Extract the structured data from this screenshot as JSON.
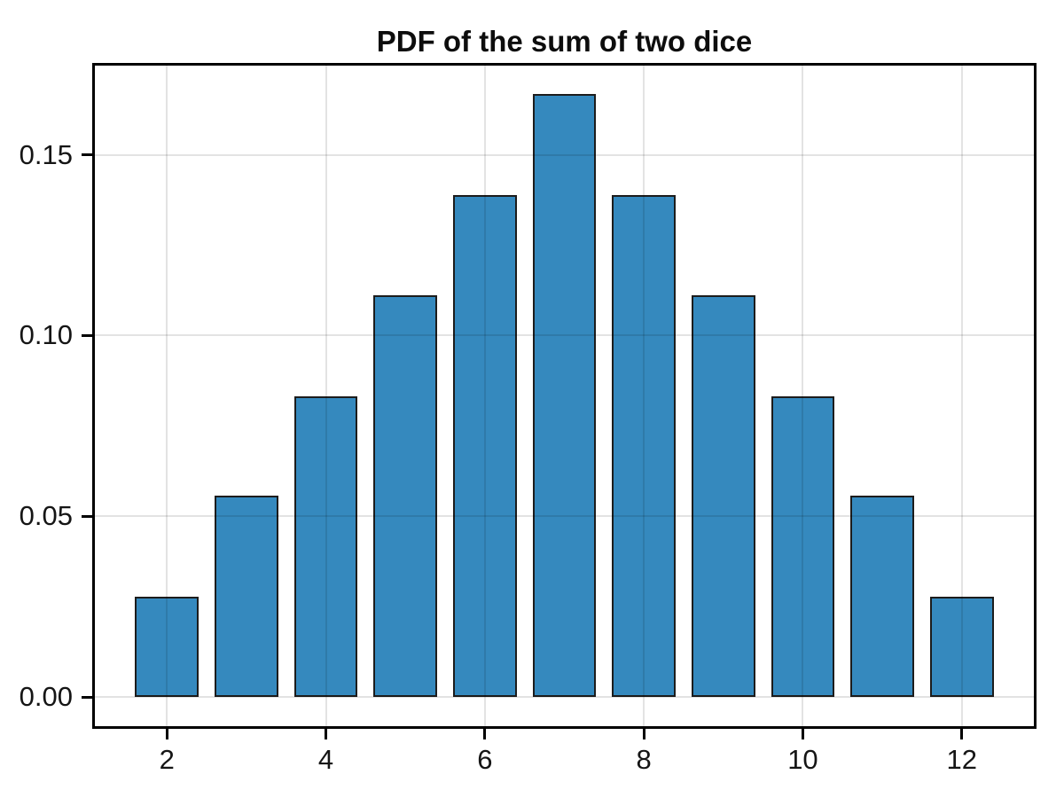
{
  "chart_data": {
    "type": "bar",
    "title": "PDF of the sum of two dice",
    "xlabel": "",
    "ylabel": "",
    "categories": [
      2,
      3,
      4,
      5,
      6,
      7,
      8,
      9,
      10,
      11,
      12
    ],
    "values": [
      0.0278,
      0.0556,
      0.0833,
      0.1111,
      0.1389,
      0.1667,
      0.1389,
      0.1111,
      0.0833,
      0.0556,
      0.0278
    ],
    "bar_width_data_units": 0.8,
    "xlim": [
      1.06,
      12.94
    ],
    "ylim": [
      -0.0088,
      0.1754
    ],
    "xticks": {
      "values": [
        2,
        4,
        6,
        8,
        10,
        12
      ],
      "labels": [
        "2",
        "4",
        "6",
        "8",
        "10",
        "12"
      ]
    },
    "yticks": {
      "values": [
        0.0,
        0.05,
        0.1,
        0.15
      ],
      "labels": [
        "0.00",
        "0.05",
        "0.10",
        "0.15"
      ]
    },
    "grid": true,
    "legend": null,
    "colors": {
      "bar_fill": "#3589be",
      "bar_edge": "#1c1c1c",
      "grid": "rgba(0,0,0,0.11)",
      "frame": "#000000",
      "text": "#151515",
      "background": "#ffffff"
    }
  }
}
